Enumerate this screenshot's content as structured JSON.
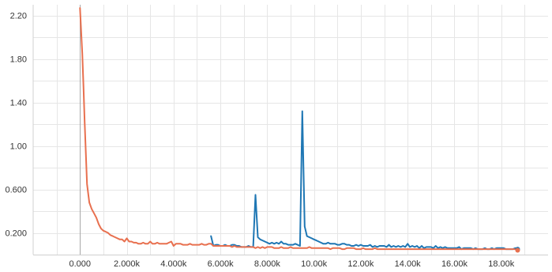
{
  "chart_data": {
    "type": "line",
    "title": "",
    "xlabel": "",
    "ylabel": "",
    "xlim": [
      -2000,
      20000
    ],
    "ylim": [
      0,
      2.3
    ],
    "grid": true,
    "legend": "none",
    "y_ticks": [
      {
        "value": 2.2,
        "label": "2.20"
      },
      {
        "value": 1.8,
        "label": "1.80"
      },
      {
        "value": 1.4,
        "label": "1.40"
      },
      {
        "value": 1.0,
        "label": "1.00"
      },
      {
        "value": 0.6,
        "label": "0.600"
      },
      {
        "value": 0.2,
        "label": "0.200"
      }
    ],
    "x_ticks": [
      {
        "value": 0,
        "label": "0.000"
      },
      {
        "value": 2000,
        "label": "2.000k"
      },
      {
        "value": 4000,
        "label": "4.000k"
      },
      {
        "value": 6000,
        "label": "6.000k"
      },
      {
        "value": 8000,
        "label": "8.000k"
      },
      {
        "value": 10000,
        "label": "10.00k"
      },
      {
        "value": 12000,
        "label": "12.00k"
      },
      {
        "value": 14000,
        "label": "14.00k"
      },
      {
        "value": 16000,
        "label": "16.00k"
      },
      {
        "value": 18000,
        "label": "18.00k"
      }
    ],
    "series": [
      {
        "color": "#1f77b4",
        "x": [
          5600,
          5700,
          5800,
          5900,
          6000,
          6100,
          6200,
          6300,
          6400,
          6500,
          6600,
          6700,
          6800,
          6900,
          7000,
          7100,
          7200,
          7300,
          7400,
          7500,
          7600,
          7700,
          7800,
          7900,
          8000,
          8100,
          8200,
          8300,
          8400,
          8500,
          8600,
          8700,
          8800,
          8900,
          9000,
          9100,
          9200,
          9300,
          9400,
          9500,
          9600,
          9700,
          9800,
          9900,
          10000,
          10100,
          10200,
          10300,
          10400,
          10500,
          10600,
          10700,
          10800,
          10900,
          11000,
          11100,
          11200,
          11300,
          11400,
          11500,
          11600,
          11700,
          11800,
          11900,
          12000,
          12100,
          12200,
          12300,
          12400,
          12500,
          12600,
          12700,
          12800,
          12900,
          13000,
          13100,
          13200,
          13300,
          13400,
          13500,
          13600,
          13700,
          13800,
          13900,
          14000,
          14100,
          14200,
          14300,
          14400,
          14500,
          14600,
          14700,
          14800,
          14900,
          15000,
          15100,
          15200,
          15300,
          15400,
          15500,
          15600,
          15700,
          15800,
          15900,
          16000,
          16100,
          16200,
          16300,
          16400,
          16500,
          16600,
          16700,
          16800,
          16900,
          17000,
          17100,
          17200,
          17300,
          17400,
          17500,
          17600,
          17700,
          17800,
          17900,
          18000,
          18100,
          18200,
          18300,
          18400,
          18500,
          18600,
          18700
        ],
        "y": [
          0.17,
          0.08,
          0.09,
          0.09,
          0.08,
          0.08,
          0.09,
          0.08,
          0.08,
          0.09,
          0.09,
          0.08,
          0.08,
          0.07,
          0.07,
          0.07,
          0.08,
          0.07,
          0.07,
          0.55,
          0.16,
          0.14,
          0.13,
          0.12,
          0.11,
          0.1,
          0.11,
          0.1,
          0.11,
          0.1,
          0.12,
          0.1,
          0.1,
          0.09,
          0.09,
          0.09,
          0.1,
          0.09,
          0.08,
          1.32,
          0.26,
          0.17,
          0.16,
          0.15,
          0.14,
          0.13,
          0.12,
          0.11,
          0.1,
          0.1,
          0.11,
          0.1,
          0.1,
          0.1,
          0.09,
          0.09,
          0.1,
          0.1,
          0.09,
          0.09,
          0.08,
          0.08,
          0.09,
          0.08,
          0.09,
          0.08,
          0.08,
          0.08,
          0.09,
          0.07,
          0.08,
          0.07,
          0.08,
          0.08,
          0.08,
          0.07,
          0.09,
          0.07,
          0.08,
          0.07,
          0.08,
          0.07,
          0.08,
          0.07,
          0.1,
          0.07,
          0.08,
          0.07,
          0.08,
          0.06,
          0.08,
          0.06,
          0.07,
          0.07,
          0.07,
          0.06,
          0.08,
          0.06,
          0.07,
          0.06,
          0.07,
          0.06,
          0.06,
          0.06,
          0.06,
          0.06,
          0.07,
          0.05,
          0.06,
          0.06,
          0.06,
          0.06,
          0.05,
          0.06,
          0.05,
          0.05,
          0.05,
          0.06,
          0.05,
          0.05,
          0.06,
          0.05,
          0.06,
          0.06,
          0.06,
          0.06,
          0.05,
          0.05,
          0.05,
          0.05,
          0.06,
          0.05
        ]
      },
      {
        "color": "#e8704f",
        "x": [
          0,
          50,
          100,
          150,
          200,
          300,
          400,
          500,
          600,
          700,
          800,
          900,
          1000,
          1100,
          1200,
          1300,
          1400,
          1500,
          1600,
          1700,
          1800,
          1900,
          2000,
          2100,
          2200,
          2300,
          2400,
          2500,
          2600,
          2700,
          2800,
          2900,
          3000,
          3100,
          3200,
          3300,
          3400,
          3500,
          3600,
          3700,
          3800,
          3900,
          4000,
          4100,
          4200,
          4300,
          4400,
          4500,
          4600,
          4700,
          4800,
          4900,
          5000,
          5100,
          5200,
          5300,
          5400,
          5500,
          5600,
          5700,
          5800,
          5900,
          6000,
          6100,
          6200,
          6300,
          6400,
          6500,
          6600,
          6700,
          6800,
          6900,
          7000,
          7100,
          7200,
          7300,
          7400,
          7500,
          7600,
          7700,
          7800,
          7900,
          8000,
          8100,
          8200,
          8300,
          8400,
          8500,
          8600,
          8700,
          8800,
          8900,
          9000,
          9100,
          9200,
          9300,
          9400,
          9500,
          9600,
          9700,
          9800,
          9900,
          10000,
          10100,
          10200,
          10300,
          10400,
          10500,
          10600,
          10700,
          10800,
          10900,
          11000,
          11100,
          11200,
          11300,
          11400,
          11500,
          11600,
          11700,
          11800,
          11900,
          12000,
          12100,
          12200,
          12300,
          12400,
          12500,
          12600,
          12700,
          12800,
          12900,
          13000,
          13100,
          13200,
          13300,
          13400,
          13500,
          13600,
          13700,
          13800,
          13900,
          14000,
          14100,
          14200,
          14300,
          14400,
          14500,
          14600,
          14700,
          14800,
          14900,
          15000,
          15100,
          15200,
          15300,
          15400,
          15500,
          15600,
          15700,
          15800,
          15900,
          16000,
          16100,
          16200,
          16300,
          16400,
          16500,
          16600,
          16700,
          16800,
          16900,
          17000,
          17100,
          17200,
          17300,
          17400,
          17500,
          17600,
          17700,
          17800,
          17900,
          18000,
          18100,
          18200,
          18300,
          18400,
          18500,
          18600,
          18700
        ],
        "y": [
          2.27,
          2.05,
          1.85,
          1.55,
          1.22,
          0.65,
          0.48,
          0.42,
          0.38,
          0.34,
          0.28,
          0.24,
          0.22,
          0.21,
          0.2,
          0.18,
          0.17,
          0.16,
          0.15,
          0.14,
          0.14,
          0.12,
          0.15,
          0.12,
          0.12,
          0.11,
          0.11,
          0.1,
          0.1,
          0.11,
          0.1,
          0.1,
          0.12,
          0.1,
          0.1,
          0.11,
          0.1,
          0.1,
          0.1,
          0.1,
          0.11,
          0.12,
          0.08,
          0.1,
          0.1,
          0.1,
          0.09,
          0.09,
          0.09,
          0.1,
          0.09,
          0.09,
          0.09,
          0.09,
          0.1,
          0.09,
          0.09,
          0.1,
          0.1,
          0.08,
          0.08,
          0.08,
          0.08,
          0.08,
          0.08,
          0.08,
          0.08,
          0.07,
          0.08,
          0.07,
          0.07,
          0.07,
          0.07,
          0.07,
          0.07,
          0.07,
          0.07,
          0.06,
          0.07,
          0.06,
          0.07,
          0.06,
          0.07,
          0.07,
          0.07,
          0.06,
          0.06,
          0.06,
          0.07,
          0.06,
          0.06,
          0.06,
          0.07,
          0.06,
          0.06,
          0.06,
          0.06,
          0.06,
          0.06,
          0.06,
          0.07,
          0.06,
          0.06,
          0.06,
          0.06,
          0.06,
          0.06,
          0.06,
          0.06,
          0.05,
          0.06,
          0.06,
          0.06,
          0.06,
          0.05,
          0.05,
          0.06,
          0.06,
          0.06,
          0.06,
          0.05,
          0.05,
          0.05,
          0.06,
          0.05,
          0.05,
          0.05,
          0.05,
          0.06,
          0.05,
          0.05,
          0.05,
          0.05,
          0.05,
          0.05,
          0.05,
          0.05,
          0.05,
          0.05,
          0.05,
          0.05,
          0.05,
          0.05,
          0.05,
          0.05,
          0.05,
          0.05,
          0.05,
          0.05,
          0.05,
          0.05,
          0.05,
          0.05,
          0.05,
          0.05,
          0.05,
          0.05,
          0.05,
          0.05,
          0.05,
          0.05,
          0.05,
          0.05,
          0.05,
          0.05,
          0.05,
          0.05,
          0.05,
          0.05,
          0.05,
          0.05,
          0.05,
          0.05,
          0.05,
          0.05,
          0.05,
          0.05,
          0.05,
          0.05,
          0.05,
          0.05,
          0.05,
          0.05,
          0.05,
          0.05,
          0.05,
          0.05,
          0.05,
          0.05,
          0.04
        ]
      }
    ]
  }
}
